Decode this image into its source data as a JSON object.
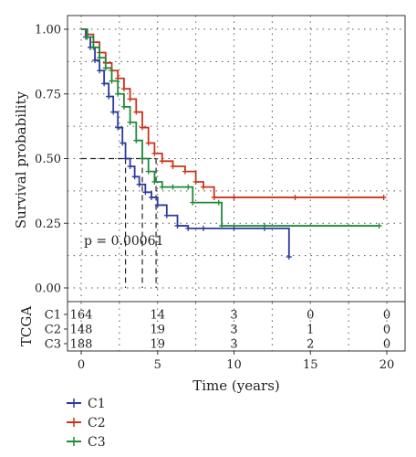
{
  "chart_data": {
    "type": "line",
    "subtype": "kaplan-meier",
    "ylabel": "Survival probability",
    "xlabel": "Time (years)",
    "xlim": [
      0,
      20
    ],
    "ylim": [
      0,
      1
    ],
    "x_ticks": [
      0,
      5,
      10,
      15,
      20
    ],
    "y_ticks": [
      0,
      0.25,
      0.5,
      0.75,
      1
    ],
    "x_tick_labels": [
      "0",
      "5",
      "10",
      "15",
      "20"
    ],
    "y_tick_labels": [
      "0.00",
      "0.25",
      "0.50",
      "0.75",
      "1.00"
    ],
    "grid": "dotted",
    "annotation": "p = 0.00061",
    "median_line_y": 0.5,
    "median_times": [
      2.9,
      4.0,
      4.9
    ],
    "series": [
      {
        "name": "C1",
        "color": "#2b3a9e",
        "x": [
          0,
          0.3,
          0.6,
          0.9,
          1.2,
          1.5,
          1.8,
          2.1,
          2.4,
          2.7,
          2.9,
          3.2,
          3.5,
          3.8,
          4.2,
          4.6,
          5.0,
          5.6,
          6.3,
          7.0,
          8.0,
          10.0,
          12.0,
          13.6
        ],
        "y": [
          1.0,
          0.97,
          0.93,
          0.88,
          0.84,
          0.79,
          0.74,
          0.68,
          0.62,
          0.56,
          0.5,
          0.47,
          0.43,
          0.4,
          0.37,
          0.35,
          0.32,
          0.28,
          0.24,
          0.23,
          0.23,
          0.23,
          0.23,
          0.12
        ]
      },
      {
        "name": "C2",
        "color": "#cc3318",
        "x": [
          0,
          0.4,
          0.8,
          1.2,
          1.6,
          2.0,
          2.4,
          2.8,
          3.2,
          3.6,
          4.0,
          4.4,
          4.8,
          5.3,
          6.0,
          6.8,
          7.5,
          8.0,
          8.7,
          10.0,
          14.0,
          19.8
        ],
        "y": [
          1.0,
          0.98,
          0.95,
          0.91,
          0.87,
          0.84,
          0.81,
          0.77,
          0.73,
          0.68,
          0.62,
          0.56,
          0.52,
          0.49,
          0.47,
          0.45,
          0.41,
          0.39,
          0.35,
          0.35,
          0.35,
          0.35
        ]
      },
      {
        "name": "C3",
        "color": "#1e8a3a",
        "x": [
          0,
          0.4,
          0.8,
          1.2,
          1.6,
          2.0,
          2.4,
          2.8,
          3.2,
          3.6,
          4.0,
          4.4,
          4.8,
          5.3,
          6.0,
          7.0,
          7.3,
          9.0,
          9.2,
          12.0,
          19.5
        ],
        "y": [
          1.0,
          0.97,
          0.93,
          0.89,
          0.85,
          0.8,
          0.75,
          0.7,
          0.64,
          0.57,
          0.5,
          0.45,
          0.41,
          0.39,
          0.39,
          0.39,
          0.33,
          0.33,
          0.24,
          0.24,
          0.24
        ]
      }
    ],
    "risk_table": {
      "label": "TCGA",
      "times": [
        0,
        5,
        10,
        15,
        20
      ],
      "rows": [
        {
          "name": "C1",
          "counts": [
            "164",
            "14",
            "3",
            "0",
            "0"
          ]
        },
        {
          "name": "C2",
          "counts": [
            "148",
            "19",
            "3",
            "1",
            "0"
          ]
        },
        {
          "name": "C3",
          "counts": [
            "188",
            "19",
            "3",
            "2",
            "0"
          ]
        }
      ]
    },
    "legend": {
      "position": "bottom-left",
      "entries": [
        "C1",
        "C2",
        "C3"
      ]
    }
  }
}
